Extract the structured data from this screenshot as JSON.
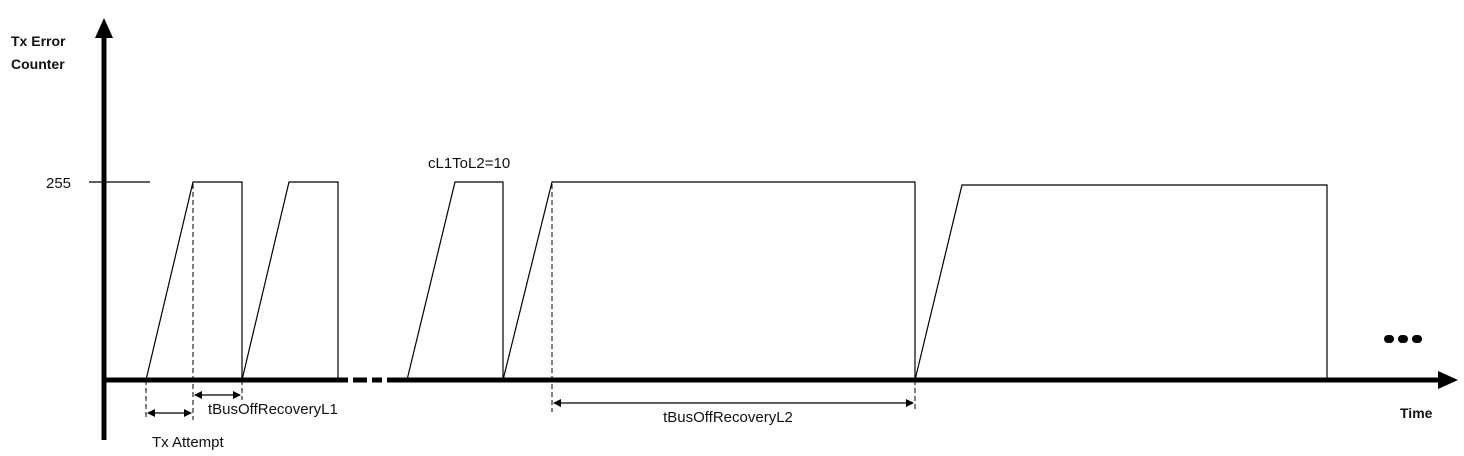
{
  "diagram": {
    "y_axis_label_line1": "Tx Error",
    "y_axis_label_line2": "Counter",
    "x_axis_label": "Time",
    "y_level_label": "255",
    "threshold_annotation": "cL1ToL2=10",
    "tx_attempt_label": "Tx Attempt",
    "recovery_l1_label": "tBusOffRecoveryL1",
    "recovery_l2_label": "tBusOffRecoveryL2",
    "continuation": "ellipsis",
    "line_color": "#000000"
  }
}
